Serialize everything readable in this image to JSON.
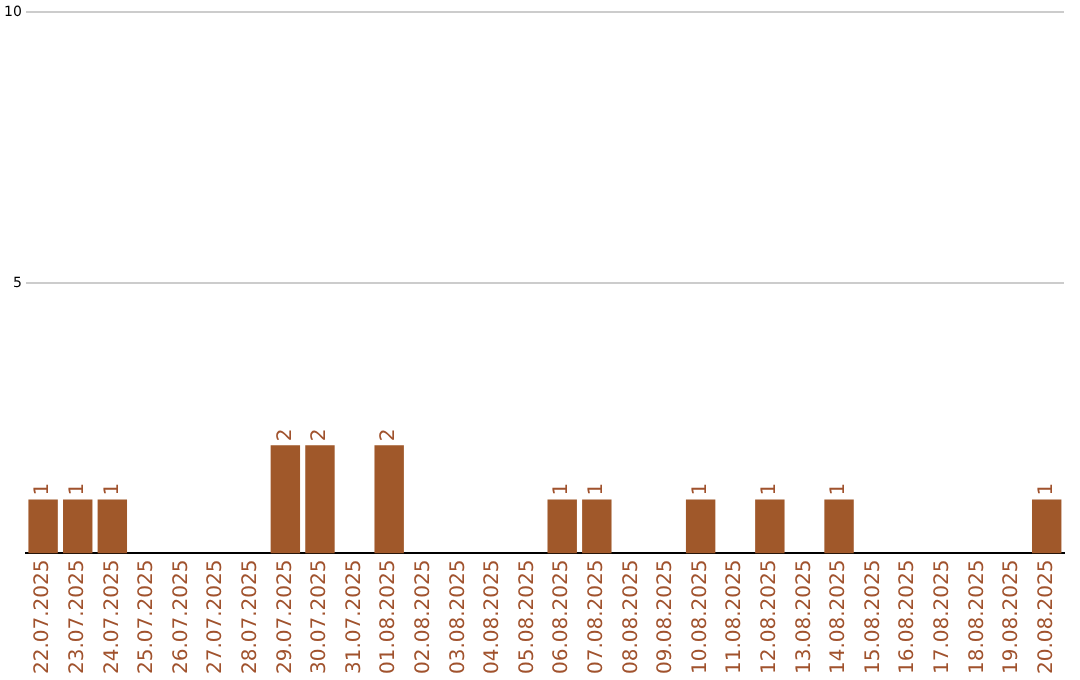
{
  "chart_data": {
    "type": "bar",
    "categories": [
      "22.07.2025",
      "23.07.2025",
      "24.07.2025",
      "25.07.2025",
      "26.07.2025",
      "27.07.2025",
      "28.07.2025",
      "29.07.2025",
      "30.07.2025",
      "31.07.2025",
      "01.08.2025",
      "02.08.2025",
      "03.08.2025",
      "04.08.2025",
      "05.08.2025",
      "06.08.2025",
      "07.08.2025",
      "08.08.2025",
      "09.08.2025",
      "10.08.2025",
      "11.08.2025",
      "12.08.2025",
      "13.08.2025",
      "14.08.2025",
      "15.08.2025",
      "16.08.2025",
      "17.08.2025",
      "18.08.2025",
      "19.08.2025",
      "20.08.2025"
    ],
    "values": [
      1,
      1,
      1,
      0,
      0,
      0,
      0,
      2,
      2,
      0,
      2,
      0,
      0,
      0,
      0,
      1,
      1,
      0,
      0,
      1,
      0,
      1,
      0,
      1,
      0,
      0,
      0,
      0,
      0,
      1
    ],
    "value_labels": [
      "1",
      "1",
      "1",
      null,
      null,
      null,
      null,
      "2",
      "2",
      null,
      "2",
      null,
      null,
      null,
      null,
      "1",
      "1",
      null,
      null,
      "1",
      null,
      "1",
      null,
      "1",
      null,
      null,
      null,
      null,
      null,
      "1"
    ],
    "color": "#a0582a",
    "ylim": [
      0,
      10
    ],
    "yticks": [
      5,
      10
    ],
    "grid": "y",
    "legend": false
  }
}
